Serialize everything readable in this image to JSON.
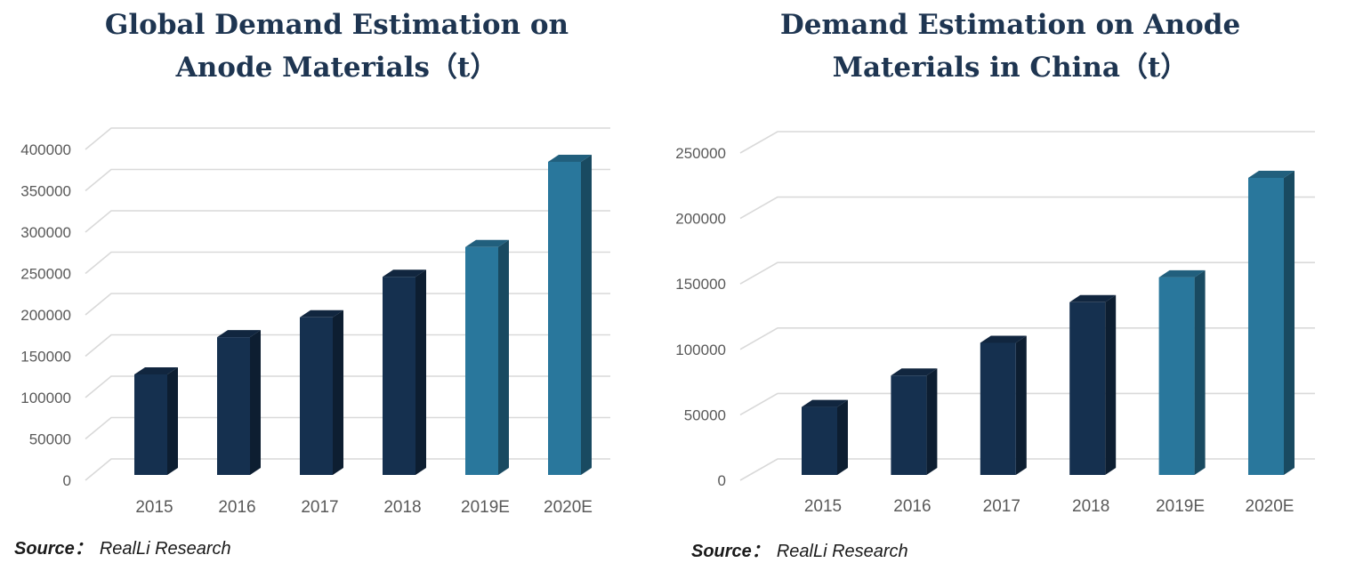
{
  "chart_data": [
    {
      "type": "bar",
      "title_lines": [
        "Global Demand Estimation on",
        "Anode Materials（t）"
      ],
      "categories": [
        "2015",
        "2016",
        "2017",
        "2018",
        "2019E",
        "2020E"
      ],
      "values": [
        128000,
        173000,
        197000,
        246000,
        282000,
        385000
      ],
      "ylim": [
        0,
        400000
      ],
      "yticks": [
        "0",
        "50000",
        "100000",
        "150000",
        "200000",
        "250000",
        "300000",
        "350000",
        "400000"
      ],
      "grid": true,
      "colors": [
        "#15304f",
        "#15304f",
        "#15304f",
        "#15304f",
        "#29779c",
        "#29779c"
      ],
      "source_label": "Source：",
      "source_text": "RealLi Research"
    },
    {
      "type": "bar",
      "title_lines": [
        "Demand Estimation on Anode",
        "Materials in China（t）"
      ],
      "categories": [
        "2015",
        "2016",
        "2017",
        "2018",
        "2019E",
        "2020E"
      ],
      "values": [
        56000,
        80000,
        105000,
        136000,
        155000,
        231000
      ],
      "ylim": [
        0,
        250000
      ],
      "yticks": [
        "0",
        "50000",
        "100000",
        "150000",
        "200000",
        "250000"
      ],
      "grid": true,
      "colors": [
        "#15304f",
        "#15304f",
        "#15304f",
        "#15304f",
        "#29779c",
        "#29779c"
      ],
      "source_label": "Source：",
      "source_text": "RealLi Research"
    }
  ]
}
